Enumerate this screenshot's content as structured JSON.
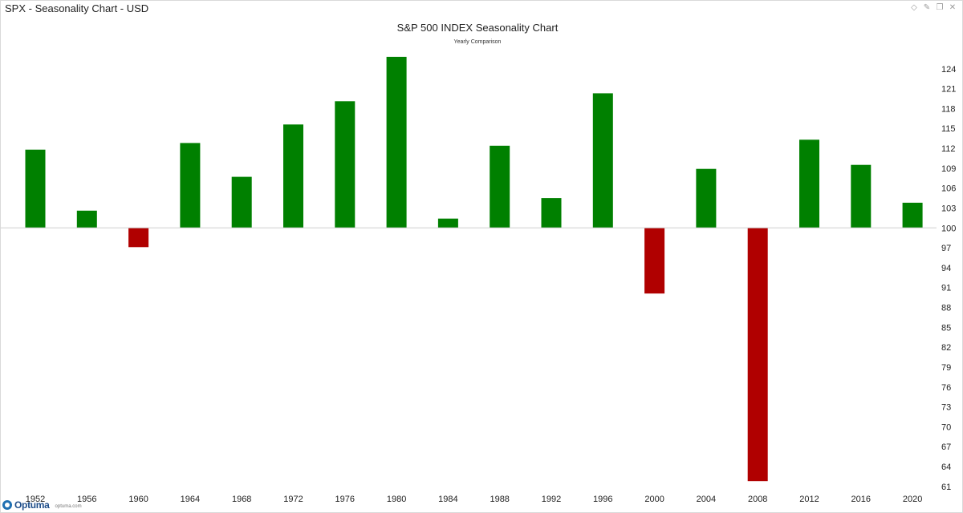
{
  "window": {
    "title": "SPX - Seasonality Chart - USD",
    "controls": [
      {
        "name": "diamond-icon",
        "glyph": "◇"
      },
      {
        "name": "pin-icon",
        "glyph": "✎"
      },
      {
        "name": "restore-icon",
        "glyph": "❐"
      },
      {
        "name": "close-icon",
        "glyph": "✕"
      }
    ]
  },
  "footer": {
    "logo_text": "Optuma",
    "logo_url": "optuma.com"
  },
  "colors": {
    "positive": "#008000",
    "negative": "#b00000",
    "baseline": "#cfcfcf",
    "text": "#222222"
  },
  "chart_data": {
    "type": "bar",
    "title": "S&P 500 INDEX Seasonality Chart",
    "subtitle": "Yearly Comparison",
    "xlabel": "",
    "ylabel": "",
    "baseline": 100,
    "ylim": [
      60.5,
      127
    ],
    "yticks": [
      61,
      64,
      67,
      70,
      73,
      76,
      79,
      82,
      85,
      88,
      91,
      94,
      97,
      100,
      103,
      106,
      109,
      112,
      115,
      118,
      121,
      124
    ],
    "y_axis_position": "right",
    "grid": false,
    "legend": "none",
    "categories": [
      "1952",
      "1956",
      "1960",
      "1964",
      "1968",
      "1972",
      "1976",
      "1980",
      "1984",
      "1988",
      "1992",
      "1996",
      "2000",
      "2004",
      "2008",
      "2012",
      "2016",
      "2020"
    ],
    "values": [
      111.8,
      102.6,
      97.1,
      112.8,
      107.7,
      115.6,
      119.1,
      125.8,
      101.4,
      112.4,
      104.5,
      120.3,
      90.1,
      108.9,
      61.8,
      113.3,
      109.5,
      103.8
    ]
  }
}
